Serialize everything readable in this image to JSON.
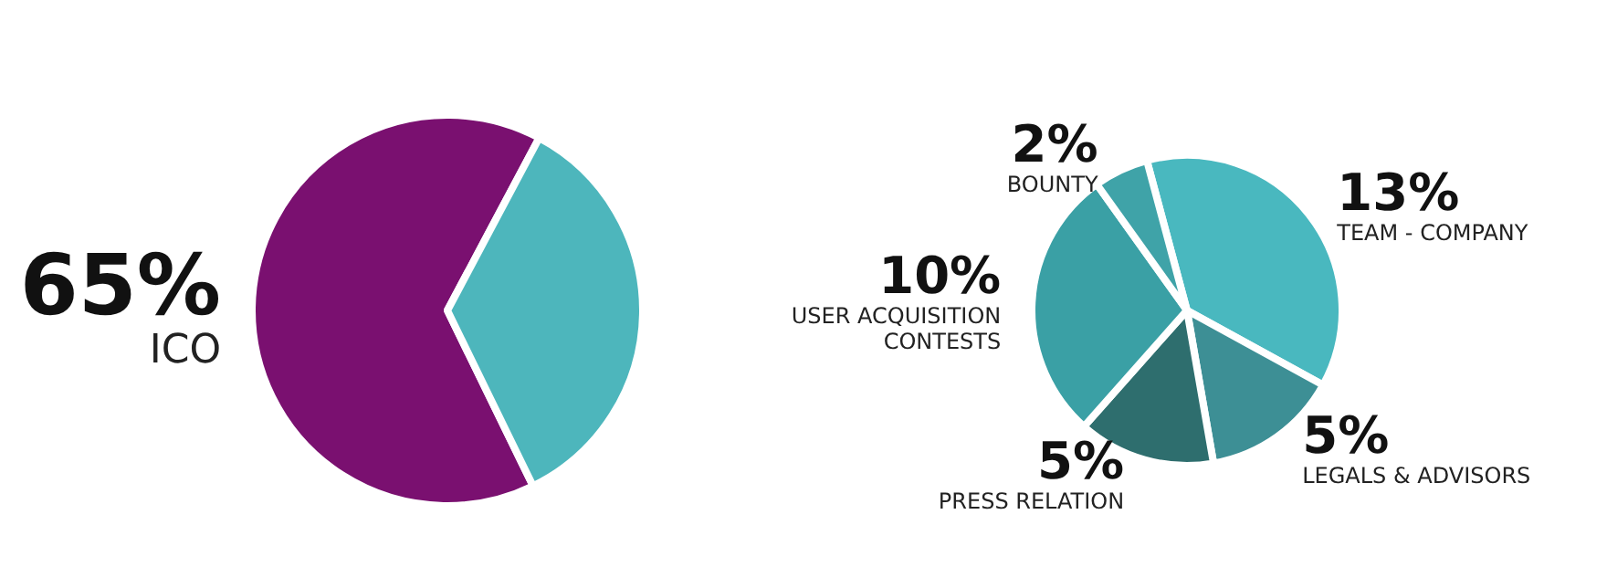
{
  "chart_data": [
    {
      "type": "pie",
      "categories": [
        "ICO",
        null
      ],
      "values": [
        65,
        35
      ],
      "colors": [
        "#7a1070",
        "#4db6bc"
      ],
      "value_labels": [
        "65%",
        null
      ]
    },
    {
      "type": "pie",
      "categories": [
        "TEAM - COMPANY",
        "LEGALS & ADVISORS",
        "PRESS RELATION",
        "USER ACQUISITION CONTESTS",
        "BOUNTY"
      ],
      "values": [
        13,
        5,
        5,
        10,
        2
      ],
      "colors": [
        "#49b8bf",
        "#3d8f95",
        "#2e6e6e",
        "#3aa0a5",
        "#3fa3a8"
      ],
      "value_labels": [
        "13%",
        "5%",
        "5%",
        "10%",
        "2%"
      ]
    }
  ]
}
